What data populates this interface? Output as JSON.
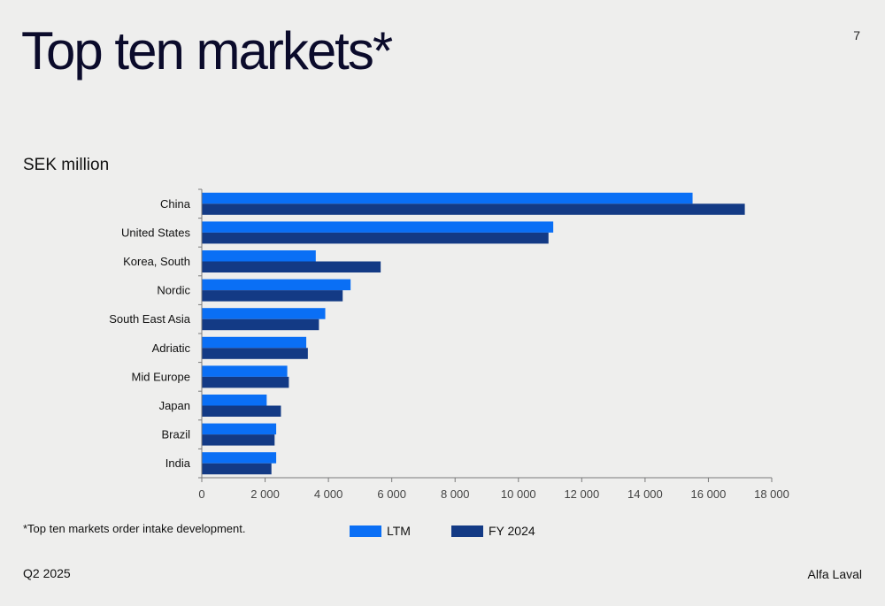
{
  "header": {
    "title": "Top ten markets*",
    "page_number": "7"
  },
  "unit_label": "SEK million",
  "footnote": "*Top ten markets order intake development.",
  "footer": {
    "period": "Q2 2025",
    "brand": "Alfa Laval"
  },
  "legend": {
    "series1_label": "LTM",
    "series2_label": "FY 2024"
  },
  "colors": {
    "ltm": "#0a6ff5",
    "fy2024": "#133a85",
    "axis": "#7a7a7a"
  },
  "chart_data": {
    "type": "bar",
    "orientation": "horizontal",
    "categories": [
      "China",
      "United States",
      "Korea, South",
      "Nordic",
      "South East Asia",
      "Adriatic",
      "Mid Europe",
      "Japan",
      "Brazil",
      "India"
    ],
    "series": [
      {
        "name": "LTM",
        "values": [
          15500,
          11100,
          3600,
          4700,
          3900,
          3300,
          2700,
          2050,
          2350,
          2350
        ]
      },
      {
        "name": "FY 2024",
        "values": [
          17150,
          10950,
          5650,
          4450,
          3700,
          3350,
          2750,
          2500,
          2300,
          2200
        ]
      }
    ],
    "xlim": [
      0,
      18000
    ],
    "xticks": [
      0,
      2000,
      4000,
      6000,
      8000,
      10000,
      12000,
      14000,
      16000,
      18000
    ],
    "xtick_labels": [
      "0",
      "2 000",
      "4 000",
      "6 000",
      "8 000",
      "10 000",
      "12 000",
      "14 000",
      "16 000",
      "18 000"
    ],
    "legend_position": "bottom"
  }
}
